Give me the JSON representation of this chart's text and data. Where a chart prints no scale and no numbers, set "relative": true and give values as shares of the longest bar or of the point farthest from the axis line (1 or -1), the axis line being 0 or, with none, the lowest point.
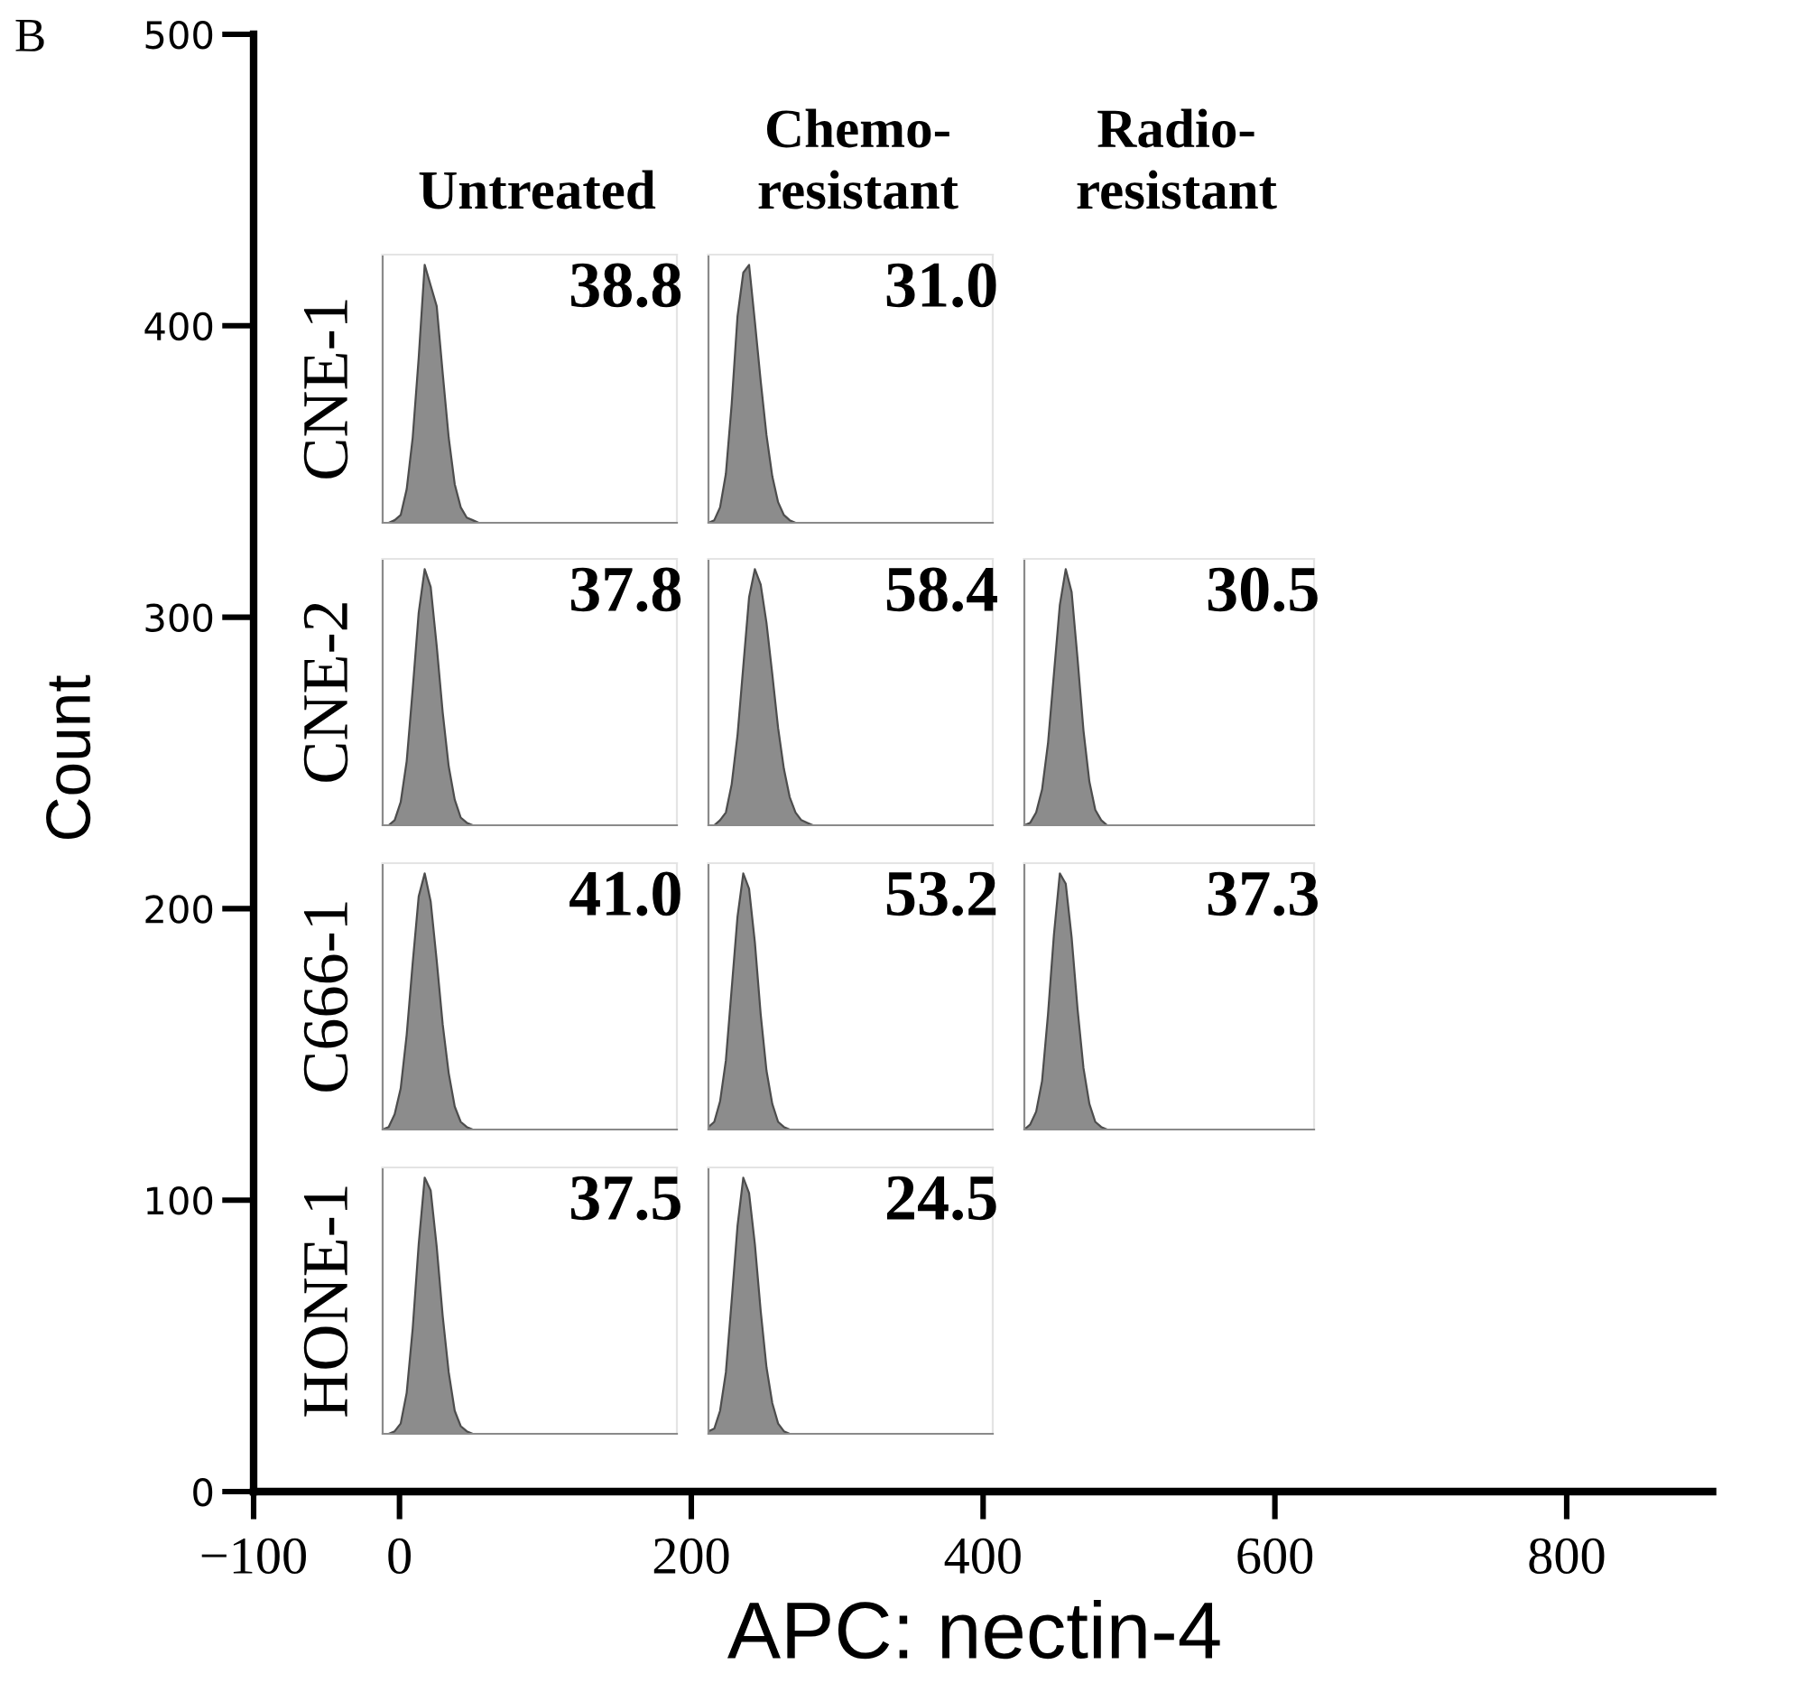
{
  "chart_data": [
    {
      "type": "line",
      "xlabel": "APC: nectin-4",
      "ylabel": "Count",
      "xlim": [
        -100,
        900
      ],
      "ylim": [
        0,
        500
      ],
      "xticks": [
        {
          "value": -100,
          "label": "−100"
        },
        0,
        200,
        400,
        600,
        800
      ],
      "yticks": [
        0,
        100,
        200,
        300,
        400,
        500
      ],
      "annotations": [
        "B",
        "Untreated",
        "Chemo-\nresistant",
        "Radio-\nresistant"
      ]
    },
    {
      "type": "area",
      "relative": true,
      "ylabel": "CNE-1",
      "annotations": [
        "38.8"
      ],
      "color": "#8c8c8c",
      "categories": [
        null,
        null,
        null,
        null,
        null,
        null,
        null,
        null,
        null,
        null,
        null,
        null,
        null,
        null,
        null,
        null,
        null,
        null,
        null,
        null,
        null,
        null,
        null,
        null,
        null,
        null,
        null,
        null,
        null,
        null,
        null,
        null,
        null,
        null,
        null,
        null,
        null,
        null,
        null,
        null,
        null,
        null,
        null,
        null,
        null,
        null,
        null,
        null,
        null,
        null
      ],
      "values": [
        0,
        0,
        0.01,
        0.03,
        0.13,
        0.33,
        0.64,
        1.0,
        0.92,
        0.84,
        0.58,
        0.33,
        0.15,
        0.06,
        0.02,
        0.01,
        0,
        0,
        0,
        0,
        0,
        0,
        0,
        0,
        0,
        0,
        0,
        0,
        0,
        0,
        0,
        0,
        0,
        0,
        0,
        0,
        0,
        0,
        0,
        0,
        0,
        0,
        0,
        0,
        0,
        0,
        0,
        0,
        0,
        0
      ]
    },
    {
      "type": "area",
      "relative": true,
      "annotations": [
        "31.0"
      ],
      "color": "#8c8c8c",
      "categories": [
        null,
        null,
        null,
        null,
        null,
        null,
        null,
        null,
        null,
        null,
        null,
        null,
        null,
        null,
        null,
        null,
        null,
        null,
        null,
        null,
        null,
        null,
        null,
        null,
        null,
        null,
        null,
        null,
        null,
        null,
        null,
        null,
        null,
        null,
        null,
        null,
        null,
        null,
        null,
        null,
        null,
        null,
        null,
        null,
        null,
        null,
        null,
        null,
        null,
        null
      ],
      "values": [
        0,
        0.01,
        0.06,
        0.19,
        0.46,
        0.8,
        0.97,
        1.0,
        0.78,
        0.55,
        0.34,
        0.18,
        0.08,
        0.03,
        0.01,
        0,
        0,
        0,
        0,
        0,
        0,
        0,
        0,
        0,
        0,
        0,
        0,
        0,
        0,
        0,
        0,
        0,
        0,
        0,
        0,
        0,
        0,
        0,
        0,
        0,
        0,
        0,
        0,
        0,
        0,
        0,
        0,
        0,
        0,
        0
      ]
    },
    {
      "type": "area",
      "relative": true,
      "ylabel": "CNE-2",
      "annotations": [
        "37.8"
      ],
      "color": "#8c8c8c",
      "categories": [
        null,
        null,
        null,
        null,
        null,
        null,
        null,
        null,
        null,
        null,
        null,
        null,
        null,
        null,
        null,
        null,
        null,
        null,
        null,
        null,
        null,
        null,
        null,
        null,
        null,
        null,
        null,
        null,
        null,
        null,
        null,
        null,
        null,
        null,
        null,
        null,
        null,
        null,
        null,
        null,
        null,
        null,
        null,
        null,
        null,
        null,
        null,
        null,
        null,
        null
      ],
      "values": [
        0,
        0,
        0.02,
        0.09,
        0.25,
        0.53,
        0.83,
        1.0,
        0.93,
        0.7,
        0.44,
        0.23,
        0.1,
        0.03,
        0.01,
        0,
        0,
        0,
        0,
        0,
        0,
        0,
        0,
        0,
        0,
        0,
        0,
        0,
        0,
        0,
        0,
        0,
        0,
        0,
        0,
        0,
        0,
        0,
        0,
        0,
        0,
        0,
        0,
        0,
        0,
        0,
        0,
        0,
        0,
        0
      ]
    },
    {
      "type": "area",
      "relative": true,
      "annotations": [
        "58.4"
      ],
      "color": "#8c8c8c",
      "categories": [
        null,
        null,
        null,
        null,
        null,
        null,
        null,
        null,
        null,
        null,
        null,
        null,
        null,
        null,
        null,
        null,
        null,
        null,
        null,
        null,
        null,
        null,
        null,
        null,
        null,
        null,
        null,
        null,
        null,
        null,
        null,
        null,
        null,
        null,
        null,
        null,
        null,
        null,
        null,
        null,
        null,
        null,
        null,
        null,
        null,
        null,
        null,
        null,
        null,
        null
      ],
      "values": [
        0,
        0,
        0.02,
        0.05,
        0.16,
        0.35,
        0.62,
        0.89,
        1.0,
        0.94,
        0.79,
        0.59,
        0.38,
        0.22,
        0.11,
        0.05,
        0.02,
        0.01,
        0,
        0,
        0,
        0,
        0,
        0,
        0,
        0,
        0,
        0,
        0,
        0,
        0,
        0,
        0,
        0,
        0,
        0,
        0,
        0,
        0,
        0,
        0,
        0,
        0,
        0,
        0,
        0,
        0,
        0,
        0,
        0
      ]
    },
    {
      "type": "area",
      "relative": true,
      "annotations": [
        "30.5"
      ],
      "color": "#8c8c8c",
      "categories": [
        null,
        null,
        null,
        null,
        null,
        null,
        null,
        null,
        null,
        null,
        null,
        null,
        null,
        null,
        null,
        null,
        null,
        null,
        null,
        null,
        null,
        null,
        null,
        null,
        null,
        null,
        null,
        null,
        null,
        null,
        null,
        null,
        null,
        null,
        null,
        null,
        null,
        null,
        null,
        null,
        null,
        null,
        null,
        null,
        null,
        null,
        null,
        null,
        null,
        null
      ],
      "values": [
        0,
        0.01,
        0.05,
        0.14,
        0.32,
        0.59,
        0.86,
        1.0,
        0.91,
        0.65,
        0.37,
        0.17,
        0.06,
        0.02,
        0,
        0,
        0,
        0,
        0,
        0,
        0,
        0,
        0,
        0,
        0,
        0,
        0,
        0,
        0,
        0,
        0,
        0,
        0,
        0,
        0,
        0,
        0,
        0,
        0,
        0,
        0,
        0,
        0,
        0,
        0,
        0,
        0,
        0,
        0,
        0
      ]
    },
    {
      "type": "area",
      "relative": true,
      "ylabel": "C666-1",
      "annotations": [
        "41.0"
      ],
      "color": "#8c8c8c",
      "categories": [
        null,
        null,
        null,
        null,
        null,
        null,
        null,
        null,
        null,
        null,
        null,
        null,
        null,
        null,
        null,
        null,
        null,
        null,
        null,
        null,
        null,
        null,
        null,
        null,
        null,
        null,
        null,
        null,
        null,
        null,
        null,
        null,
        null,
        null,
        null,
        null,
        null,
        null,
        null,
        null,
        null,
        null,
        null,
        null,
        null,
        null,
        null,
        null,
        null,
        null
      ],
      "values": [
        0,
        0.01,
        0.06,
        0.16,
        0.37,
        0.65,
        0.91,
        1.0,
        0.89,
        0.66,
        0.41,
        0.22,
        0.09,
        0.03,
        0.01,
        0,
        0,
        0,
        0,
        0,
        0,
        0,
        0,
        0,
        0,
        0,
        0,
        0,
        0,
        0,
        0,
        0,
        0,
        0,
        0,
        0,
        0,
        0,
        0,
        0,
        0,
        0,
        0,
        0,
        0,
        0,
        0,
        0,
        0,
        0
      ]
    },
    {
      "type": "area",
      "relative": true,
      "annotations": [
        "53.2"
      ],
      "color": "#8c8c8c",
      "categories": [
        null,
        null,
        null,
        null,
        null,
        null,
        null,
        null,
        null,
        null,
        null,
        null,
        null,
        null,
        null,
        null,
        null,
        null,
        null,
        null,
        null,
        null,
        null,
        null,
        null,
        null,
        null,
        null,
        null,
        null,
        null,
        null,
        null,
        null,
        null,
        null,
        null,
        null,
        null,
        null,
        null,
        null,
        null,
        null,
        null,
        null,
        null,
        null,
        null,
        null
      ],
      "values": [
        0.01,
        0.03,
        0.11,
        0.27,
        0.55,
        0.83,
        1.0,
        0.94,
        0.73,
        0.45,
        0.23,
        0.1,
        0.03,
        0.01,
        0,
        0,
        0,
        0,
        0,
        0,
        0,
        0,
        0,
        0,
        0,
        0,
        0,
        0,
        0,
        0,
        0,
        0,
        0,
        0,
        0,
        0,
        0,
        0,
        0,
        0,
        0,
        0,
        0,
        0,
        0,
        0,
        0,
        0,
        0,
        0
      ]
    },
    {
      "type": "area",
      "relative": true,
      "annotations": [
        "37.3"
      ],
      "color": "#8c8c8c",
      "categories": [
        null,
        null,
        null,
        null,
        null,
        null,
        null,
        null,
        null,
        null,
        null,
        null,
        null,
        null,
        null,
        null,
        null,
        null,
        null,
        null,
        null,
        null,
        null,
        null,
        null,
        null,
        null,
        null,
        null,
        null,
        null,
        null,
        null,
        null,
        null,
        null,
        null,
        null,
        null,
        null,
        null,
        null,
        null,
        null,
        null,
        null,
        null,
        null,
        null,
        null
      ],
      "values": [
        0,
        0.02,
        0.07,
        0.19,
        0.45,
        0.76,
        1.0,
        0.96,
        0.75,
        0.47,
        0.24,
        0.1,
        0.03,
        0.01,
        0,
        0,
        0,
        0,
        0,
        0,
        0,
        0,
        0,
        0,
        0,
        0,
        0,
        0,
        0,
        0,
        0,
        0,
        0,
        0,
        0,
        0,
        0,
        0,
        0,
        0,
        0,
        0,
        0,
        0,
        0,
        0,
        0,
        0,
        0,
        0
      ]
    },
    {
      "type": "area",
      "relative": true,
      "ylabel": "HONE-1",
      "annotations": [
        "37.5"
      ],
      "color": "#8c8c8c",
      "categories": [
        null,
        null,
        null,
        null,
        null,
        null,
        null,
        null,
        null,
        null,
        null,
        null,
        null,
        null,
        null,
        null,
        null,
        null,
        null,
        null,
        null,
        null,
        null,
        null,
        null,
        null,
        null,
        null,
        null,
        null,
        null,
        null,
        null,
        null,
        null,
        null,
        null,
        null,
        null,
        null,
        null,
        null,
        null,
        null,
        null,
        null,
        null,
        null,
        null,
        null
      ],
      "values": [
        0,
        0,
        0.01,
        0.04,
        0.16,
        0.41,
        0.74,
        1.0,
        0.95,
        0.73,
        0.46,
        0.24,
        0.09,
        0.03,
        0.01,
        0,
        0,
        0,
        0,
        0,
        0,
        0,
        0,
        0,
        0,
        0,
        0,
        0,
        0,
        0,
        0,
        0,
        0,
        0,
        0,
        0,
        0,
        0,
        0,
        0,
        0,
        0,
        0,
        0,
        0,
        0,
        0,
        0,
        0,
        0
      ]
    },
    {
      "type": "area",
      "relative": true,
      "annotations": [
        "24.5"
      ],
      "color": "#8c8c8c",
      "categories": [
        null,
        null,
        null,
        null,
        null,
        null,
        null,
        null,
        null,
        null,
        null,
        null,
        null,
        null,
        null,
        null,
        null,
        null,
        null,
        null,
        null,
        null,
        null,
        null,
        null,
        null,
        null,
        null,
        null,
        null,
        null,
        null,
        null,
        null,
        null,
        null,
        null,
        null,
        null,
        null,
        null,
        null,
        null,
        null,
        null,
        null,
        null,
        null,
        null,
        null
      ],
      "values": [
        0.01,
        0.02,
        0.09,
        0.24,
        0.52,
        0.81,
        1.0,
        0.94,
        0.74,
        0.48,
        0.26,
        0.12,
        0.04,
        0.01,
        0,
        0,
        0,
        0,
        0,
        0,
        0,
        0,
        0,
        0,
        0,
        0,
        0,
        0,
        0,
        0,
        0,
        0,
        0,
        0,
        0,
        0,
        0,
        0,
        0,
        0,
        0,
        0,
        0,
        0,
        0,
        0,
        0,
        0,
        0,
        0
      ]
    }
  ]
}
